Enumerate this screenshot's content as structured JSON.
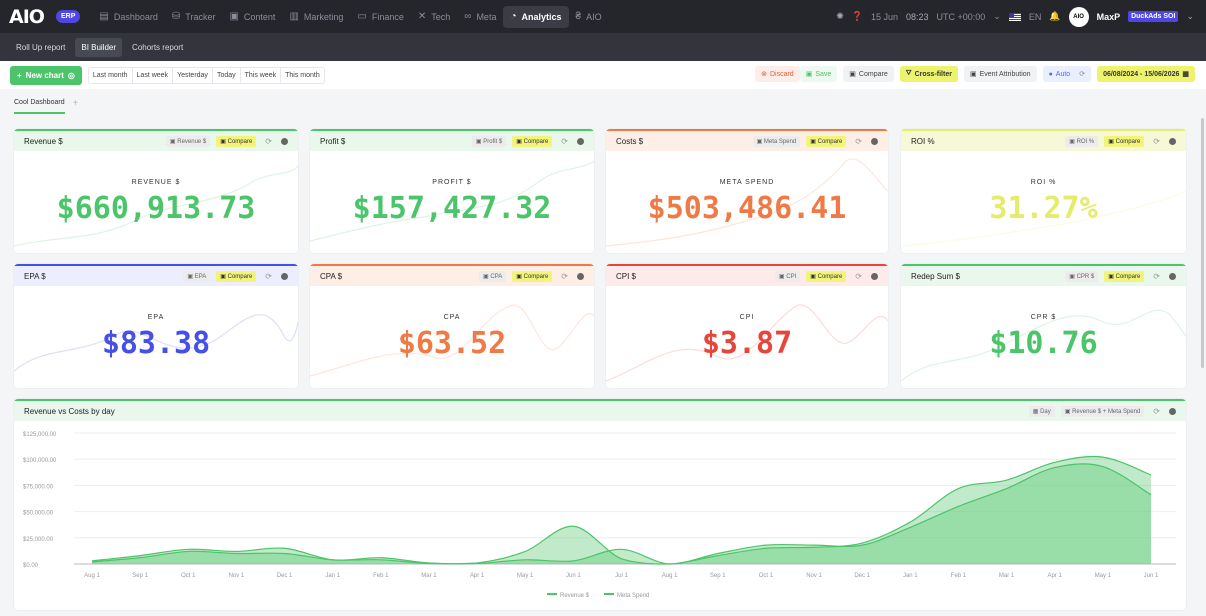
{
  "app": {
    "logo": "AIO",
    "erp_badge": "ERP"
  },
  "nav": [
    {
      "icon": "▤",
      "label": "Dashboard",
      "name": "nav-dashboard"
    },
    {
      "icon": "⛁",
      "label": "Tracker",
      "name": "nav-tracker"
    },
    {
      "icon": "▣",
      "label": "Content",
      "name": "nav-content"
    },
    {
      "icon": "▥",
      "label": "Marketing",
      "name": "nav-marketing"
    },
    {
      "icon": "▭",
      "label": "Finance",
      "name": "nav-finance"
    },
    {
      "icon": "✕",
      "label": "Tech",
      "name": "nav-tech"
    },
    {
      "icon": "∞",
      "label": "Meta",
      "name": "nav-meta"
    },
    {
      "icon": "◔",
      "label": "Analytics",
      "name": "nav-analytics",
      "active": true
    },
    {
      "icon": "₴",
      "label": "AIO",
      "name": "nav-aio"
    }
  ],
  "topright": {
    "date": "15 Jun",
    "time": "08:23",
    "tz": "UTC +00:00",
    "lang": "EN",
    "user": "MaxP",
    "user_badge": "DuckAds SOI",
    "avatar_text": "AIO"
  },
  "subnav": [
    "Roll Up report",
    "BI Builder",
    "Cohorts report"
  ],
  "toolbar": {
    "new_chart": "New chart",
    "ranges": [
      "Last month",
      "Last week",
      "Yesterday",
      "Today",
      "This week",
      "This month"
    ],
    "discard": "Discard",
    "save": "Save",
    "compare": "Compare",
    "cross_filter": "Cross-filter",
    "event_attribution": "Event Attribution",
    "auto": "Auto",
    "date_range": "06/08/2024 - 15/06/2026"
  },
  "tabs": {
    "active": "Cool Dashboard"
  },
  "kpis": [
    {
      "title": "Revenue $",
      "chip": "Revenue $",
      "label": "REVENUE $",
      "value": "$660,913.73",
      "color": "#4cc46a",
      "head_bg": "#e9f7ec"
    },
    {
      "title": "Profit $",
      "chip": "Profit $",
      "label": "PROFIT $",
      "value": "$157,427.32",
      "color": "#4cc46a",
      "head_bg": "#e9f7ec"
    },
    {
      "title": "Costs $",
      "chip": "Meta Spend",
      "label": "META SPEND",
      "value": "$503,486.41",
      "color": "#f07a45",
      "head_bg": "#fdeee6"
    },
    {
      "title": "ROI %",
      "chip": "ROI %",
      "label": "ROI %",
      "value": "31.27%",
      "color": "#e4ec6c",
      "head_bg": "#f6f8d8"
    },
    {
      "title": "EPA $",
      "chip": "EPA",
      "label": "EPA",
      "value": "$83.38",
      "color": "#4650e6",
      "head_bg": "#eceefe"
    },
    {
      "title": "CPA $",
      "chip": "CPA",
      "label": "CPA",
      "value": "$63.52",
      "color": "#f07a45",
      "head_bg": "#fdeee6"
    },
    {
      "title": "CPI $",
      "chip": "CPI",
      "label": "CPI",
      "value": "$3.87",
      "color": "#e5453a",
      "head_bg": "#fdeaea"
    },
    {
      "title": "Redep Sum $",
      "chip": "CPR $",
      "label": "CPR $",
      "value": "$10.76",
      "color": "#4cc46a",
      "head_bg": "#e9f7ec"
    }
  ],
  "compare_label": "Compare",
  "big_chart": {
    "title": "Revenue vs Costs by day",
    "chip_day": "Day",
    "chip_metrics": "Revenue $ + Meta Spend"
  },
  "chart_data": {
    "type": "area",
    "title": "Revenue vs Costs by day",
    "x": [
      "Aug 1",
      "Sep 1",
      "Oct 1",
      "Nov 1",
      "Dec 1",
      "Jan 1",
      "Feb 1",
      "Mar 1",
      "Apr 1",
      "May 1",
      "Jun 1",
      "Jul 1",
      "Aug 1",
      "Sep 1",
      "Oct 1",
      "Nov 1",
      "Dec 1",
      "Jan 1",
      "Feb 1",
      "Mar 1",
      "Apr 1",
      "May 1",
      "Jun 1"
    ],
    "yticks": [
      "$0.00",
      "$25,000.00",
      "$50,000.00",
      "$75,000.00",
      "$100,000.00",
      "$125,000.00"
    ],
    "ylim": [
      0,
      125000
    ],
    "series": [
      {
        "name": "Revenue $",
        "color": "#4cc46a",
        "values": [
          3000,
          8000,
          14000,
          12000,
          15000,
          4000,
          6000,
          1000,
          1000,
          12000,
          36000,
          5000,
          0,
          8000,
          15000,
          16000,
          20000,
          40000,
          72000,
          80000,
          97000,
          102000,
          85000
        ]
      },
      {
        "name": "Meta Spend",
        "color": "#8fdc9c",
        "values": [
          2000,
          6000,
          12000,
          10000,
          10000,
          4000,
          4000,
          500,
          500,
          4000,
          3000,
          14000,
          0,
          10000,
          18000,
          18000,
          18000,
          35000,
          55000,
          72000,
          92000,
          93000,
          66000
        ]
      }
    ],
    "legend": "bottom"
  }
}
